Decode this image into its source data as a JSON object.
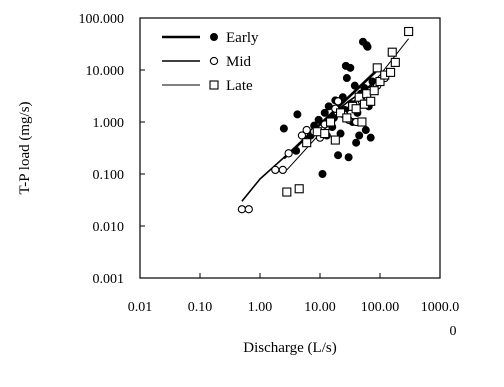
{
  "chart_data": {
    "type": "scatter",
    "title": "",
    "xlabel": "Discharge (L/s)",
    "ylabel": "T-P load (mg/s)",
    "xscale": "log",
    "yscale": "log",
    "xlim": [
      0.01,
      1000
    ],
    "ylim": [
      0.001,
      100
    ],
    "x_tick_labels": [
      "0.01",
      "0.10",
      "1.00",
      "10.00",
      "100.00",
      "1000.0 0"
    ],
    "y_tick_labels": [
      "0.001",
      "0.010",
      "0.100",
      "1.000",
      "10.000",
      "100.000"
    ],
    "grid": false,
    "legend_position": "top-left",
    "series": [
      {
        "name": "Early",
        "marker": "filled-circle",
        "line": "thick",
        "points": [
          [
            2.5,
            0.75
          ],
          [
            4.0,
            0.28
          ],
          [
            4.2,
            1.4
          ],
          [
            7.0,
            0.55
          ],
          [
            8.0,
            0.85
          ],
          [
            9.5,
            1.1
          ],
          [
            11.0,
            0.1
          ],
          [
            12.0,
            1.5
          ],
          [
            13.0,
            0.55
          ],
          [
            14.0,
            2.0
          ],
          [
            16.0,
            0.8
          ],
          [
            17.0,
            1.2
          ],
          [
            18.0,
            2.6
          ],
          [
            20.0,
            0.23
          ],
          [
            22.0,
            0.6
          ],
          [
            24.0,
            3.0
          ],
          [
            26.0,
            1.7
          ],
          [
            27.0,
            12.0
          ],
          [
            28.0,
            7.0
          ],
          [
            30.0,
            0.21
          ],
          [
            32.0,
            11.0
          ],
          [
            34.0,
            2.2
          ],
          [
            35.0,
            1.0
          ],
          [
            38.0,
            5.0
          ],
          [
            40.0,
            0.4
          ],
          [
            42.0,
            1.5
          ],
          [
            45.0,
            0.55
          ],
          [
            48.0,
            3.5
          ],
          [
            52.0,
            35.0
          ],
          [
            55.0,
            4.5
          ],
          [
            58.0,
            0.7
          ],
          [
            60.0,
            30.0
          ],
          [
            62.0,
            28.0
          ],
          [
            65.0,
            2.0
          ],
          [
            70.0,
            0.5
          ],
          [
            75.0,
            6.0
          ]
        ],
        "trend": [
          [
            2.5,
            0.2
          ],
          [
            10.0,
            0.9
          ],
          [
            30.0,
            3.0
          ],
          [
            90.0,
            10.0
          ]
        ]
      },
      {
        "name": "Mid",
        "marker": "open-circle",
        "line": "medium",
        "points": [
          [
            0.5,
            0.021
          ],
          [
            0.65,
            0.021
          ],
          [
            1.8,
            0.12
          ],
          [
            2.4,
            0.12
          ],
          [
            3.0,
            0.25
          ],
          [
            5.0,
            0.55
          ],
          [
            6.0,
            0.7
          ],
          [
            8.0,
            0.65
          ],
          [
            10.0,
            0.5
          ],
          [
            12.0,
            0.9
          ],
          [
            15.0,
            1.0
          ],
          [
            18.0,
            1.8
          ],
          [
            20.0,
            2.5
          ],
          [
            25.0,
            1.4
          ],
          [
            30.0,
            1.1
          ],
          [
            35.0,
            2.0
          ],
          [
            40.0,
            1.0
          ],
          [
            50.0,
            2.5
          ],
          [
            60.0,
            3.5
          ],
          [
            70.0,
            4.0
          ],
          [
            90.0,
            5.0
          ],
          [
            120.0,
            7.0
          ]
        ],
        "trend": [
          [
            0.5,
            0.03
          ],
          [
            1.0,
            0.08
          ],
          [
            3.0,
            0.25
          ],
          [
            10.0,
            0.9
          ],
          [
            30.0,
            2.5
          ],
          [
            100.0,
            6.5
          ],
          [
            150.0,
            9.0
          ]
        ]
      },
      {
        "name": "Late",
        "marker": "open-square",
        "line": "thin",
        "points": [
          [
            2.8,
            0.045
          ],
          [
            4.5,
            0.052
          ],
          [
            6.0,
            0.4
          ],
          [
            9.0,
            0.65
          ],
          [
            12.0,
            0.6
          ],
          [
            15.0,
            1.0
          ],
          [
            18.0,
            0.45
          ],
          [
            22.0,
            1.5
          ],
          [
            28.0,
            1.2
          ],
          [
            35.0,
            2.0
          ],
          [
            40.0,
            1.8
          ],
          [
            45.0,
            3.0
          ],
          [
            50.0,
            1.0
          ],
          [
            55.0,
            2.2
          ],
          [
            60.0,
            3.5
          ],
          [
            70.0,
            2.5
          ],
          [
            80.0,
            4.0
          ],
          [
            90.0,
            11.0
          ],
          [
            100.0,
            6.0
          ],
          [
            120.0,
            8.0
          ],
          [
            150.0,
            9.0
          ],
          [
            160.0,
            22.0
          ],
          [
            180.0,
            14.0
          ],
          [
            300.0,
            55.0
          ]
        ],
        "trend": [
          [
            2.8,
            0.12
          ],
          [
            10.0,
            0.6
          ],
          [
            30.0,
            2.0
          ],
          [
            100.0,
            8.0
          ],
          [
            300.0,
            40.0
          ]
        ]
      }
    ]
  }
}
